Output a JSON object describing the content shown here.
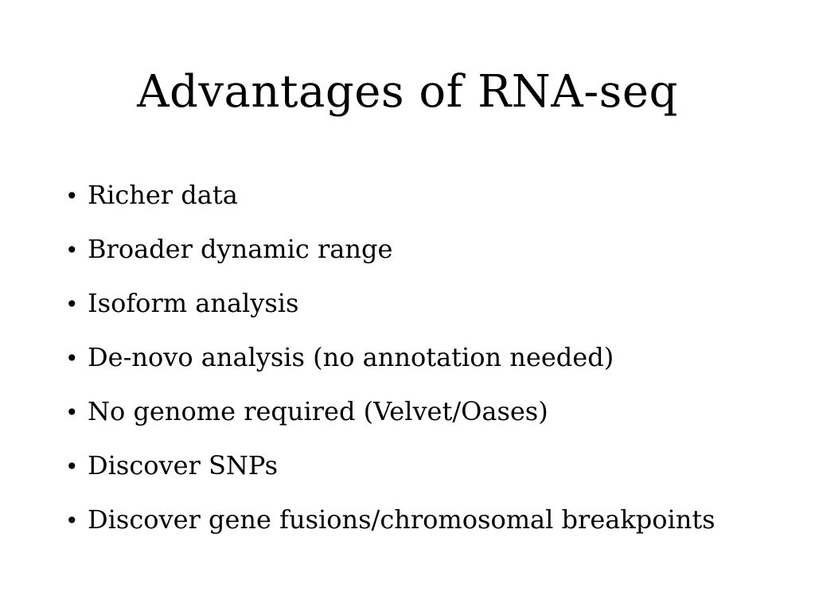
{
  "slide": {
    "title": "Advantages of RNA-seq",
    "bullet_marker": "•",
    "bullets": [
      "Richer data",
      "Broader dynamic range",
      "Isoform analysis",
      "De-novo analysis (no annotation needed)",
      "No genome required (Velvet/Oases)",
      "Discover SNPs",
      "Discover gene fusions/chromosomal breakpoints"
    ]
  }
}
